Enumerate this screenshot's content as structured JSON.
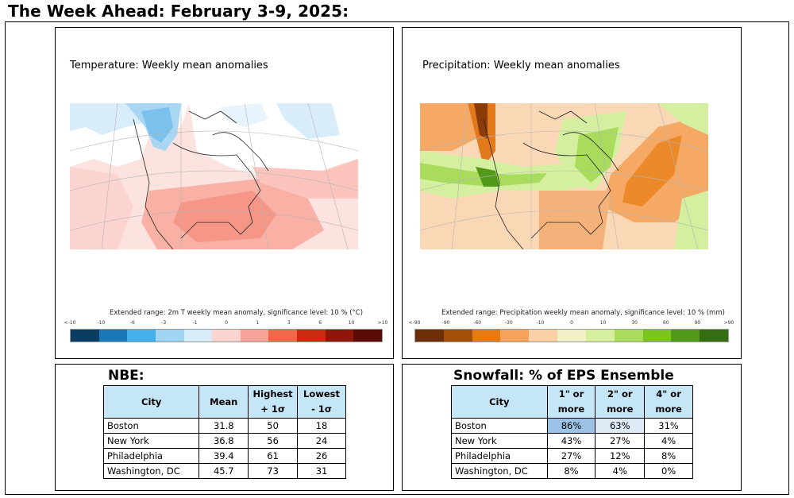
{
  "page_title": "The Week Ahead: February 3-9, 2025:",
  "temperature_map": {
    "title": "Temperature: Weekly mean anomalies",
    "legend_caption": "Extended range: 2m T weekly mean anomaly, significance level: 10 % (°C)",
    "legend_ticks": [
      "<-10",
      "-10",
      "-6",
      "-3",
      "-1",
      "0",
      "1",
      "3",
      "6",
      "10",
      ">10"
    ],
    "legend_colors": [
      "#0b3d63",
      "#1878b8",
      "#43b0ec",
      "#9fd4f2",
      "#d6ecf9",
      "#fbd3cf",
      "#f7a498",
      "#f06848",
      "#cc2a10",
      "#8f1608",
      "#5a0c04"
    ]
  },
  "precipitation_map": {
    "title": "Precipitation: Weekly mean anomalies",
    "legend_caption": "Extended range: Precipitation weekly mean anomaly, significance level: 10 % (mm)",
    "legend_ticks": [
      "<-90",
      "-90",
      "-60",
      "-30",
      "-10",
      "0",
      "10",
      "30",
      "60",
      "90",
      ">90"
    ],
    "legend_colors": [
      "#6b2e06",
      "#a34f0a",
      "#e77b11",
      "#f7a25a",
      "#fad0a6",
      "#f2f0c7",
      "#d5ef9e",
      "#a9dc5d",
      "#7cc420",
      "#52991a",
      "#346d12"
    ]
  },
  "nbe": {
    "heading": "NBE:",
    "headers": [
      "City",
      "Mean",
      "Highest + 1σ",
      "Lowest - 1σ"
    ],
    "rows": [
      [
        "Boston",
        "31.8",
        "50",
        "18"
      ],
      [
        "New York",
        "36.8",
        "56",
        "24"
      ],
      [
        "Philadelphia",
        "39.4",
        "61",
        "26"
      ],
      [
        "Washington, DC",
        "45.7",
        "73",
        "31"
      ]
    ]
  },
  "snowfall": {
    "heading": "Snowfall: % of EPS Ensemble Members:",
    "headers": [
      "City",
      "1\" or more",
      "2\" or more",
      "4\" or more"
    ],
    "rows": [
      [
        "Boston",
        "86%",
        "63%",
        "31%"
      ],
      [
        "New York",
        "43%",
        "27%",
        "4%"
      ],
      [
        "Philadelphia",
        "27%",
        "12%",
        "8%"
      ],
      [
        "Washington, DC",
        "8%",
        "4%",
        "0%"
      ]
    ]
  }
}
